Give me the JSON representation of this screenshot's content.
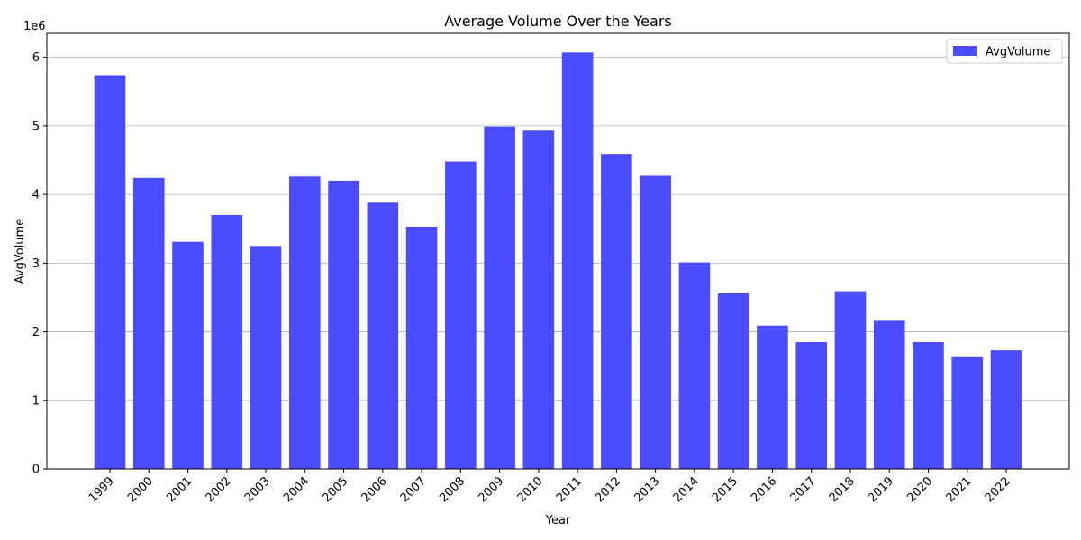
{
  "chart_data": {
    "type": "bar",
    "title": "Average Volume Over the Years",
    "xlabel": "Year",
    "ylabel": "AvgVolume",
    "y_offset_label": "1e6",
    "y_scale": 1000000,
    "categories": [
      "1999",
      "2000",
      "2001",
      "2002",
      "2003",
      "2004",
      "2005",
      "2006",
      "2007",
      "2008",
      "2009",
      "2010",
      "2011",
      "2012",
      "2013",
      "2014",
      "2015",
      "2016",
      "2017",
      "2018",
      "2019",
      "2020",
      "2021",
      "2022"
    ],
    "series": [
      {
        "name": "AvgVolume",
        "color": "#4b4bff",
        "values": [
          5740000,
          4240000,
          3310000,
          3700000,
          3250000,
          4260000,
          4200000,
          3880000,
          3530000,
          4480000,
          4990000,
          4930000,
          6070000,
          4590000,
          4270000,
          3010000,
          2560000,
          2090000,
          1850000,
          2590000,
          2160000,
          1850000,
          1630000,
          1730000
        ]
      }
    ],
    "yticks": [
      0,
      1,
      2,
      3,
      4,
      5,
      6
    ],
    "ylim": [
      0,
      6350000
    ],
    "grid": "y",
    "legend_position": "top-right"
  }
}
